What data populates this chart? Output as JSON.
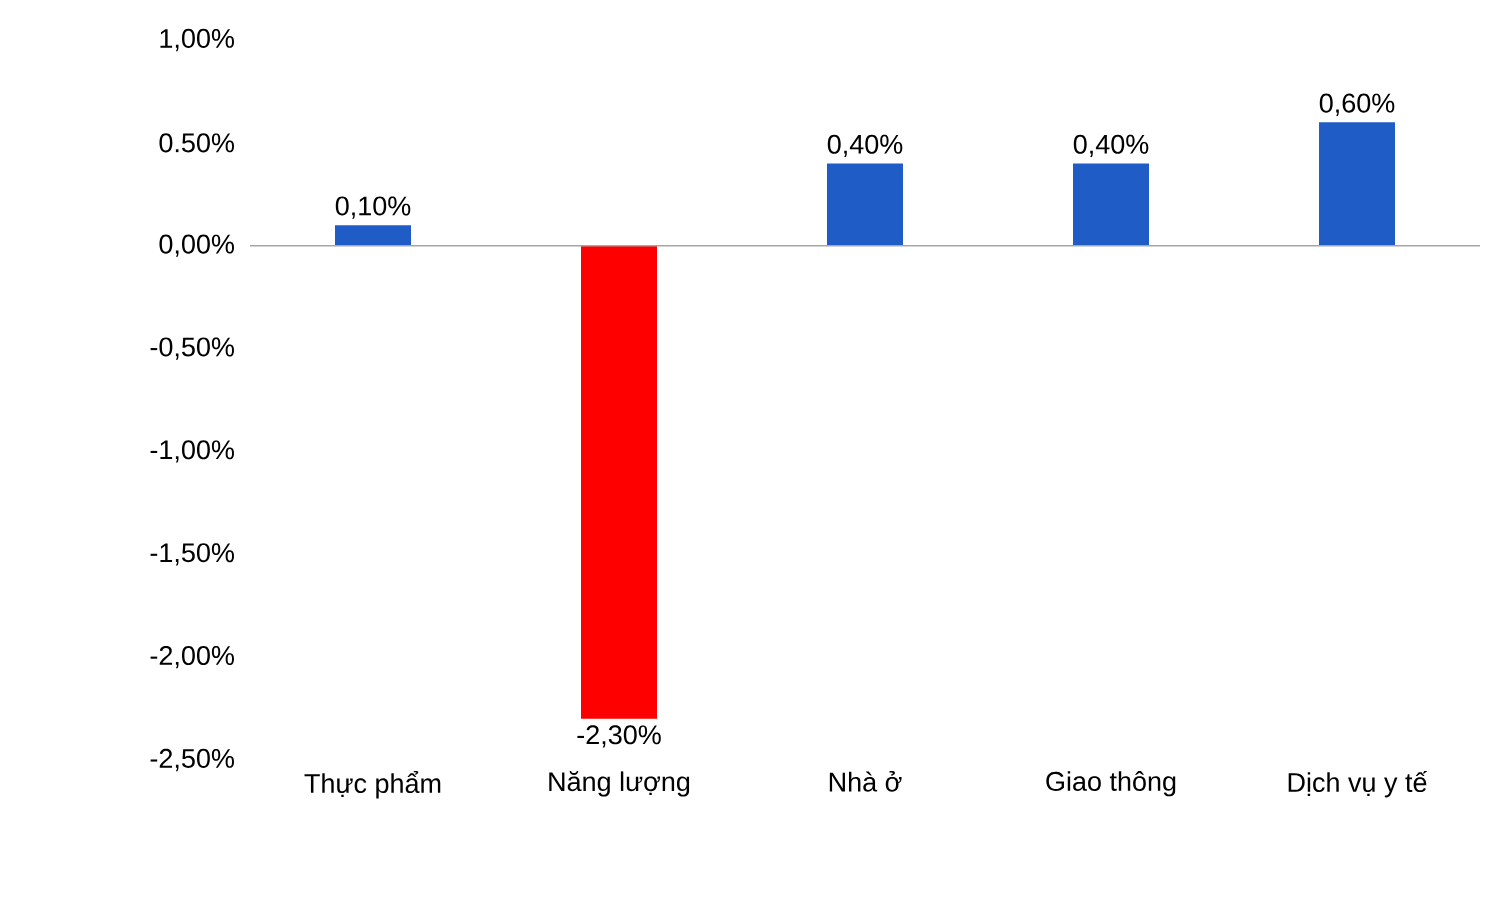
{
  "chart_data": {
    "type": "bar",
    "categories": [
      "Thực phẩm",
      "Năng lượng",
      "Nhà ở",
      "Giao thông",
      "Dịch vụ y tế"
    ],
    "values": [
      0.1,
      -2.3,
      0.4,
      0.4,
      0.6
    ],
    "colors": [
      "#1f5cc6",
      "#ff0000",
      "#1f5cc6",
      "#1f5cc6",
      "#1f5cc6"
    ],
    "value_labels": [
      "0,10%",
      "-2,30%",
      "0,40%",
      "0,40%",
      "0,60%"
    ],
    "ylim": [
      -2.5,
      1.0
    ],
    "yticks": [
      {
        "value": 1.0,
        "label": "1,00%"
      },
      {
        "value": 0.5,
        "label": "0.50%"
      },
      {
        "value": 0.0,
        "label": "0,00%"
      },
      {
        "value": -0.5,
        "label": "-0,50%"
      },
      {
        "value": -1.0,
        "label": "-1,00%"
      },
      {
        "value": -1.5,
        "label": "-1,50%"
      },
      {
        "value": -2.0,
        "label": "-2,00%"
      },
      {
        "value": -2.5,
        "label": "-2,50%"
      }
    ],
    "relative": false
  }
}
